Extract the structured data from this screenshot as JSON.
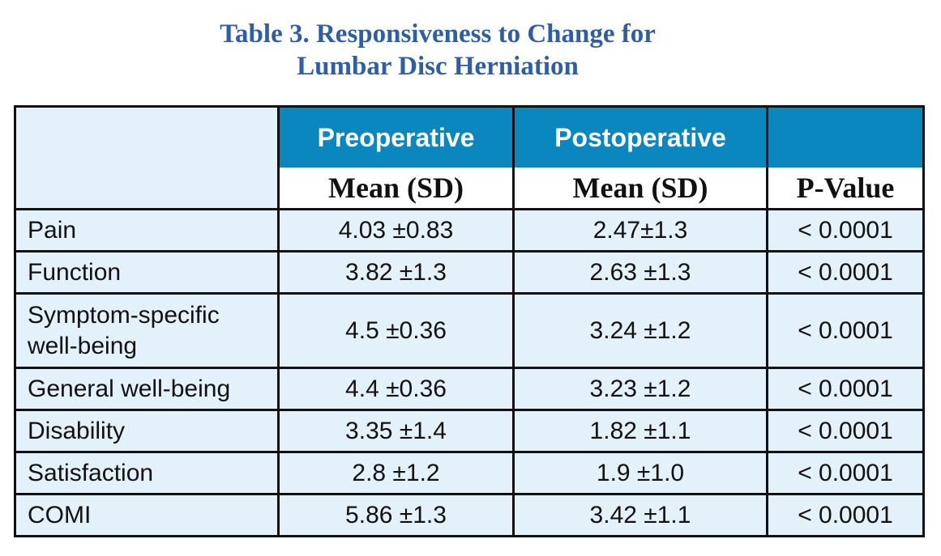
{
  "title": {
    "line1": "Table 3. Responsiveness to Change for",
    "line2": "Lumbar Disc Herniation"
  },
  "header": {
    "preoperative": "Preoperative",
    "postoperative": "Postoperative",
    "pre_sub": "Mean (SD)",
    "post_sub": "Mean (SD)",
    "pvalue": "P-Value"
  },
  "rows": [
    {
      "label": "Pain",
      "pre": "4.03 ±0.83",
      "post": "2.47±1.3",
      "p": "< 0.0001"
    },
    {
      "label": "Function",
      "pre": "3.82 ±1.3",
      "post": "2.63 ±1.3",
      "p": "< 0.0001"
    },
    {
      "label_line1": "Symptom-specific",
      "label_line2": "well-being",
      "pre": "4.5 ±0.36",
      "post": "3.24 ±1.2",
      "p": "< 0.0001"
    },
    {
      "label": "General well-being",
      "pre": "4.4 ±0.36",
      "post": "3.23 ±1.2",
      "p": "< 0.0001"
    },
    {
      "label": "Disability",
      "pre": "3.35 ±1.4",
      "post": "1.82 ±1.1",
      "p": "< 0.0001"
    },
    {
      "label": "Satisfaction",
      "pre": "2.8 ±1.2",
      "post": "1.9 ±1.0",
      "p": "< 0.0001"
    },
    {
      "label": "COMI",
      "pre": "5.86 ±1.3",
      "post": "3.42 ±1.1",
      "p": "< 0.0001"
    }
  ],
  "colors": {
    "title": "#2e5ea4",
    "header_fill": "#0b87bf",
    "cell_fill": "#e3f1fa"
  }
}
